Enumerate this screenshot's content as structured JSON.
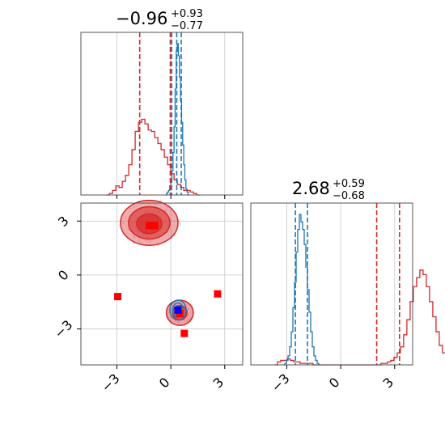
{
  "chart_data": {
    "type": "corner",
    "colors": {
      "blue": "#1f77b4",
      "red": "#d62728",
      "grid": "#c8c8c8",
      "axis": "#555555"
    },
    "axis_range": [
      -5,
      4
    ],
    "ticks": [
      -3,
      0,
      3
    ],
    "tick_labels": [
      "−3",
      "0",
      "3"
    ],
    "grid": true,
    "panels": [
      {
        "id": "param1-hist",
        "title_main": "−0.96",
        "title_sup": "+0.93",
        "title_sub": "−0.77",
        "series": [
          {
            "color": "red",
            "bin_start": -3.6,
            "bin_width": 0.18,
            "values": [
              0,
              1,
              3,
              6,
              5,
              9,
              13,
              20,
              30,
              42,
              48,
              50,
              47,
              43,
              42,
              38,
              34,
              30,
              25,
              20,
              14,
              10,
              7,
              5,
              3,
              3,
              2,
              1,
              0
            ]
          },
          {
            "color": "blue",
            "bin_start": -0.3,
            "bin_width": 0.06,
            "values": [
              0,
              1,
              2,
              3,
              6,
              10,
              16,
              28,
              45,
              70,
              95,
              100,
              92,
              78,
              62,
              48,
              33,
              20,
              10,
              4,
              2,
              0
            ]
          }
        ],
        "quantile_lines": [
          {
            "color": "red",
            "x": -1.73
          },
          {
            "color": "red",
            "x": -0.03
          },
          {
            "color": "blue",
            "x": 0.05
          },
          {
            "color": "blue",
            "x": 0.33
          },
          {
            "color": "blue",
            "x": 0.58
          }
        ]
      },
      {
        "id": "param2-hist",
        "title_main": "2.68",
        "title_sup": "+0.59",
        "title_sub": "−0.68",
        "series": [
          {
            "color": "red",
            "bin_start": -3.7,
            "bin_width": 0.18,
            "values": [
              0,
              2,
              3,
              3,
              4,
              3,
              2,
              2,
              1,
              1,
              1,
              1,
              0,
              0,
              0,
              0,
              0,
              0,
              0,
              0,
              0,
              0,
              0,
              0,
              0,
              0,
              0,
              0,
              0,
              0,
              0,
              0,
              0,
              1,
              1,
              2,
              3,
              5,
              8,
              12,
              20,
              30,
              42,
              52,
              58,
              63,
              60,
              52,
              42,
              32,
              22,
              13,
              8,
              4,
              2,
              1,
              0
            ]
          },
          {
            "color": "blue",
            "bin_start": -3.2,
            "bin_width": 0.09,
            "values": [
              0,
              1,
              3,
              6,
              12,
              22,
              38,
              55,
              75,
              90,
              100,
              95,
              90,
              80,
              65,
              50,
              35,
              22,
              12,
              6,
              3,
              1,
              0
            ]
          }
        ],
        "quantile_lines": [
          {
            "color": "blue",
            "x": -2.52
          },
          {
            "color": "blue",
            "x": -1.85
          },
          {
            "color": "red",
            "x": 2.0
          },
          {
            "color": "red",
            "x": 3.27
          }
        ]
      }
    ],
    "scatter_2d": {
      "red_contours": [
        {
          "cx": -1.2,
          "cy": 2.9,
          "rx": 1.6,
          "ry": 1.25,
          "fill_opacity": 0.55
        },
        {
          "cx": -1.2,
          "cy": 2.9,
          "rx": 1.15,
          "ry": 0.9,
          "fill_opacity": 0.8
        },
        {
          "cx": -1.2,
          "cy": 2.85,
          "rx": 0.7,
          "ry": 0.55,
          "fill_opacity": 1.0
        },
        {
          "cx": 0.5,
          "cy": -2.1,
          "rx": 0.75,
          "ry": 0.7,
          "fill_opacity": 0.6
        },
        {
          "cx": 0.5,
          "cy": -2.1,
          "rx": 0.4,
          "ry": 0.4,
          "fill_opacity": 0.9
        }
      ],
      "blue_contours": [
        {
          "cx": 0.4,
          "cy": -1.95,
          "rx": 0.45,
          "ry": 0.55
        },
        {
          "cx": 0.4,
          "cy": -1.95,
          "rx": 0.3,
          "ry": 0.4
        },
        {
          "cx": 0.4,
          "cy": -1.95,
          "rx": 0.17,
          "ry": 0.25
        }
      ],
      "red_markers": [
        {
          "x": -1.2,
          "y": 2.75
        },
        {
          "x": -0.9,
          "y": 2.75
        },
        {
          "x": -2.95,
          "y": -1.2
        },
        {
          "x": 2.6,
          "y": -1.05
        },
        {
          "x": 0.75,
          "y": -3.25
        },
        {
          "x": 0.5,
          "y": -2.15
        }
      ],
      "blue_markers": [
        {
          "x": 0.4,
          "y": -1.95
        }
      ]
    }
  }
}
